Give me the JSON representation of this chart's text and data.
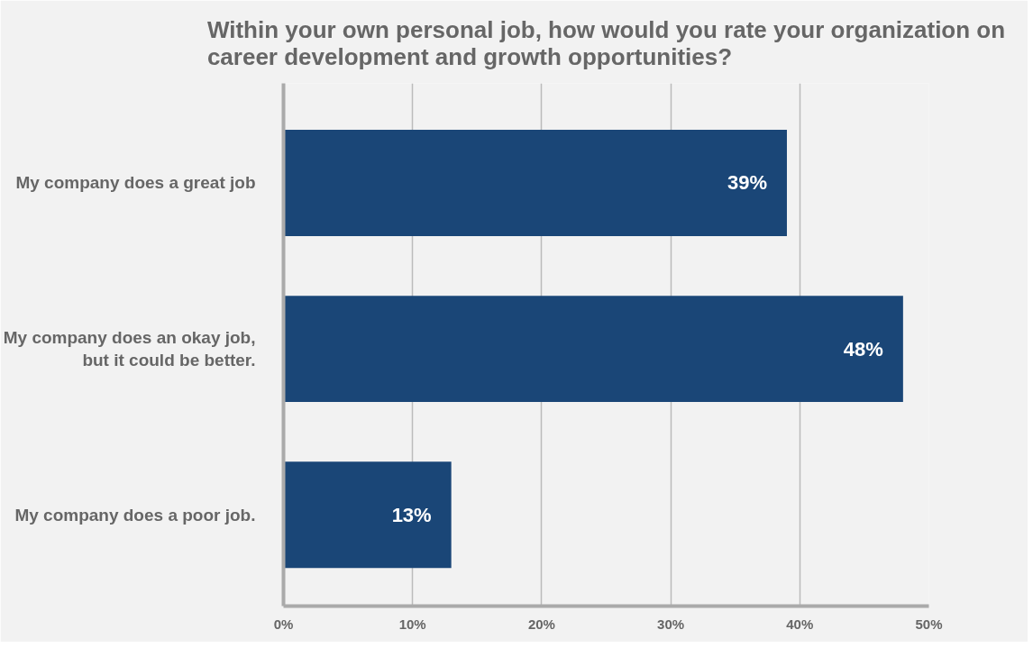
{
  "chart_data": {
    "type": "bar",
    "orientation": "horizontal",
    "title": "Within your own personal job, how would you rate your organization on career development and growth opportunities?",
    "categories": [
      "My company does a great job",
      "My company does an okay job,\nbut it could be better.",
      "My company does a poor job."
    ],
    "values": [
      39,
      48,
      13
    ],
    "color": "#1a4677",
    "value_labels": [
      "39%",
      "48%",
      "13%"
    ],
    "xlim": [
      0,
      50
    ],
    "xticks": [
      {
        "value": 0,
        "label": "0%"
      },
      {
        "value": 10,
        "label": "10%"
      },
      {
        "value": 20,
        "label": "20%"
      },
      {
        "value": 30,
        "label": "30%"
      },
      {
        "value": 40,
        "label": "40%"
      },
      {
        "value": 50,
        "label": "50%"
      }
    ],
    "grid": "x"
  }
}
